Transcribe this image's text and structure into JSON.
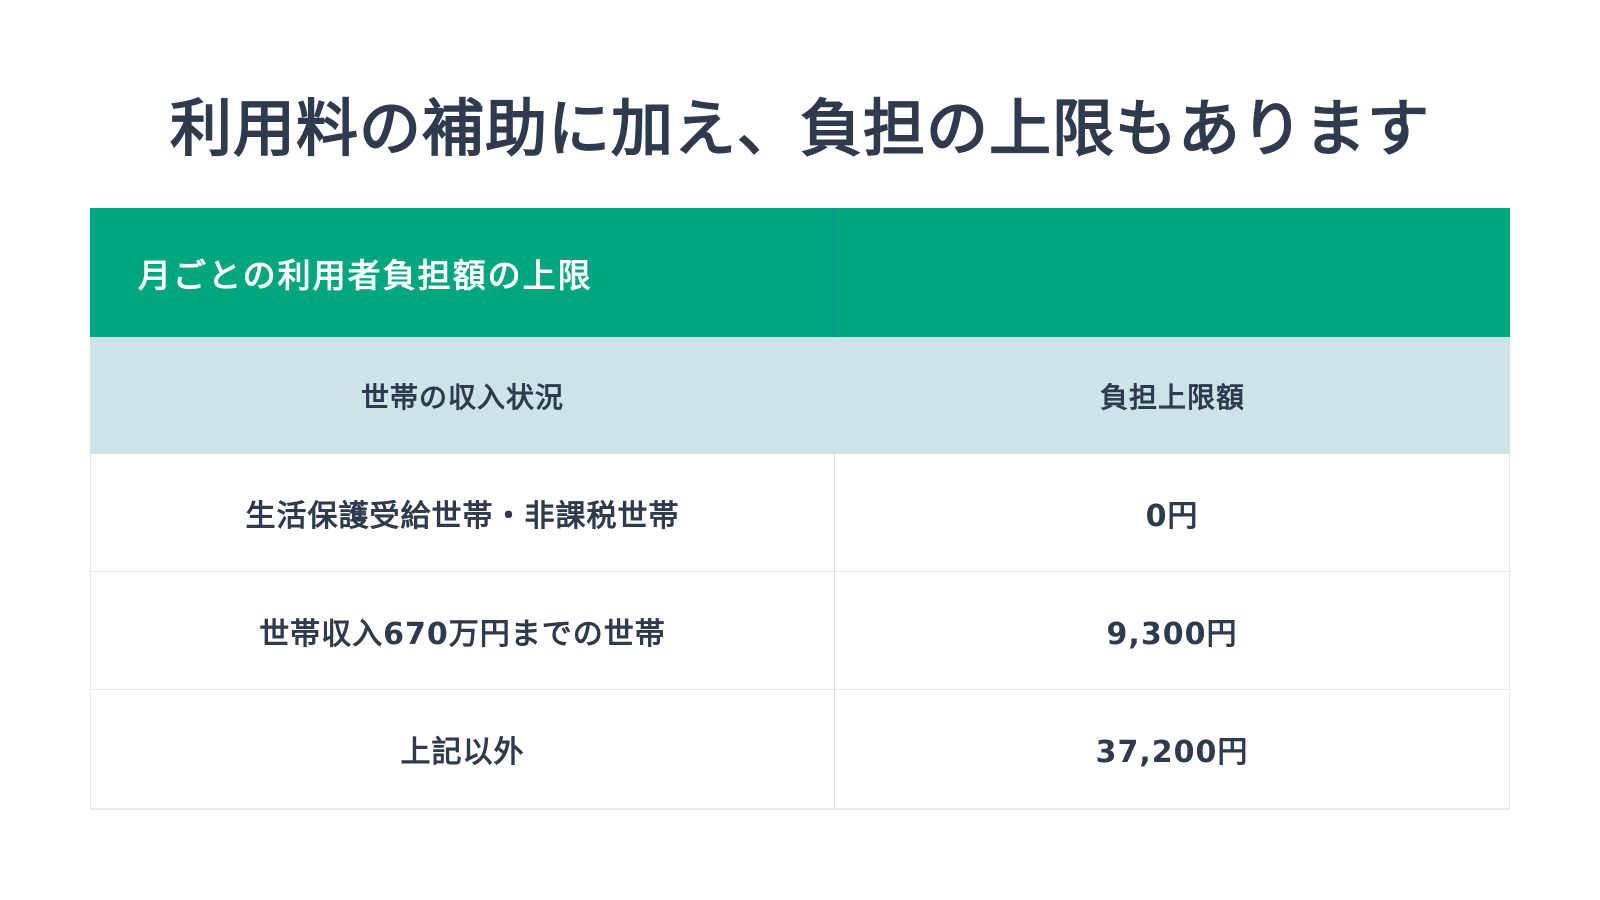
{
  "page": {
    "title": "利用料の補助に加え、負担の上限もあります"
  },
  "table": {
    "header_title": "月ごとの利用者負担額の上限",
    "columns": {
      "income": "世帯の収入状況",
      "cap": "負担上限額"
    },
    "rows": [
      {
        "income": "生活保護受給世帯・非課税世帯",
        "cap": "0円"
      },
      {
        "income": "世帯収入670万円までの世帯",
        "cap": "9,300円"
      },
      {
        "income": "上記以外",
        "cap": "37,200円"
      }
    ],
    "colors": {
      "header_bg": "#00a67e",
      "header_divider": "#0c9a85",
      "subheader_bg": "#cce4e9",
      "text_dark": "#2e3a4d",
      "header_text": "#ffffff",
      "row_bg": "#ffffff",
      "border": "#e9e9e9"
    }
  }
}
